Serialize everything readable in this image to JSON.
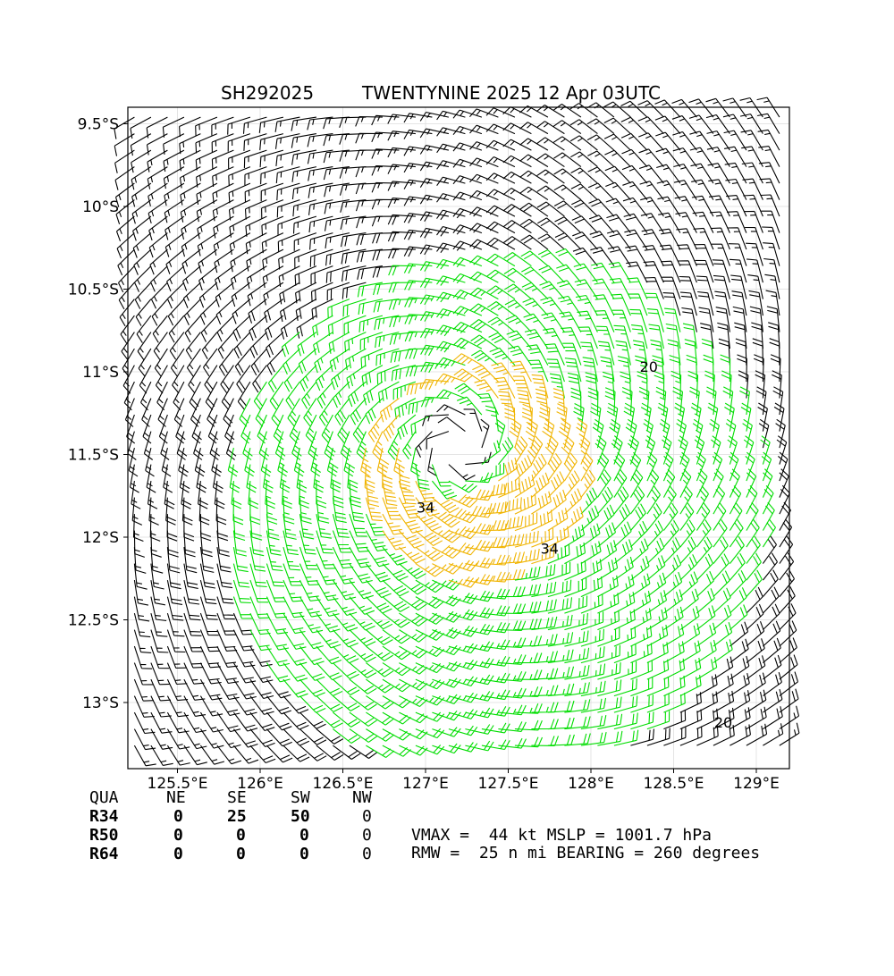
{
  "title": {
    "storm_id": "SH292025",
    "storm_info": "TWENTYNINE 2025 12 Apr 03UTC"
  },
  "chart_data": {
    "type": "wind-barb-map",
    "lon_range": [
      125.2,
      129.2
    ],
    "lat_range": [
      -13.4,
      -9.4
    ],
    "x_ticks": [
      {
        "value": 125.5,
        "label": "125.5°E"
      },
      {
        "value": 126.0,
        "label": "126°E"
      },
      {
        "value": 126.5,
        "label": "126.5°E"
      },
      {
        "value": 127.0,
        "label": "127°E"
      },
      {
        "value": 127.5,
        "label": "127.5°E"
      },
      {
        "value": 128.0,
        "label": "128°E"
      },
      {
        "value": 128.5,
        "label": "128.5°E"
      },
      {
        "value": 129.0,
        "label": "129°E"
      }
    ],
    "y_ticks": [
      {
        "value": -9.5,
        "label": "9.5°S"
      },
      {
        "value": -10.0,
        "label": "10°S"
      },
      {
        "value": -10.5,
        "label": "10.5°S"
      },
      {
        "value": -11.0,
        "label": "11°S"
      },
      {
        "value": -11.5,
        "label": "11.5°S"
      },
      {
        "value": -12.0,
        "label": "12°S"
      },
      {
        "value": -12.5,
        "label": "12.5°S"
      },
      {
        "value": -13.0,
        "label": "13°S"
      }
    ],
    "grid": true,
    "storm_center": {
      "lon": 127.2,
      "lat": -11.45
    },
    "rmw_deg": 0.42,
    "vmax_kt": 44,
    "barb_spacing_deg": 0.1,
    "thresholds_kt": [
      20,
      34
    ],
    "colors": {
      "below_20": "#000000",
      "from_20": "#00dd00",
      "from_34": "#f0b400"
    },
    "contour_labels": [
      {
        "text": "20",
        "lon": 128.35,
        "lat": -11.0
      },
      {
        "text": "34",
        "lon": 127.0,
        "lat": -11.85
      },
      {
        "text": "34",
        "lon": 127.75,
        "lat": -12.1
      },
      {
        "text": "20",
        "lon": 128.8,
        "lat": -13.15
      }
    ]
  },
  "table": {
    "headers": [
      "QUA",
      "NE",
      "SE",
      "SW",
      "NW"
    ],
    "rows": [
      {
        "label": "R34",
        "values": [
          "0",
          "25",
          "50",
          "0"
        ]
      },
      {
        "label": "R50",
        "values": [
          "0",
          "0",
          "0",
          "0"
        ]
      },
      {
        "label": "R64",
        "values": [
          "0",
          "0",
          "0",
          "0"
        ]
      }
    ]
  },
  "stats": {
    "line1": "VMAX =  44 kt MSLP = 1001.7 hPa",
    "line2": "RMW =  25 n mi BEARING = 260 degrees"
  }
}
